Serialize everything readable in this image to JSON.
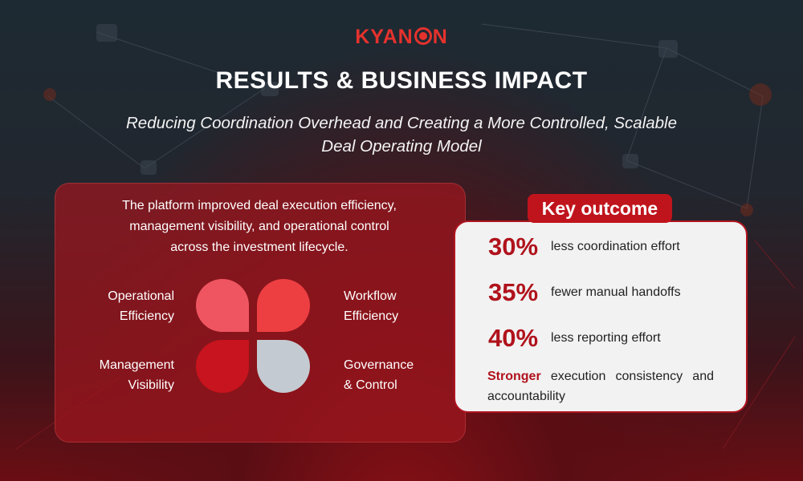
{
  "brand": {
    "logo_prefix": "KYAN",
    "logo_suffix": "N",
    "color": "#e5322d"
  },
  "header": {
    "title": "RESULTS & BUSINESS IMPACT",
    "subtitle_line1": "Reducing Coordination Overhead and Creating a More Controlled, Scalable",
    "subtitle_line2": "Deal Operating Model"
  },
  "left_panel": {
    "intro_line1": "The platform improved deal execution efficiency,",
    "intro_line2": "management visibility, and operational control",
    "intro_line3": "across the investment lifecycle.",
    "quadrants": {
      "top_left": {
        "line1": "Operational",
        "line2": "Efficiency",
        "color": "#ef5560"
      },
      "top_right": {
        "line1": "Workflow",
        "line2": "Efficiency",
        "color": "#ed3f42"
      },
      "bottom_left": {
        "line1": "Management",
        "line2": "Visibility",
        "color": "#c8141e"
      },
      "bottom_right": {
        "line1": "Governance",
        "line2": "& Control",
        "color": "#c4cad1"
      }
    }
  },
  "key_outcome": {
    "badge": "Key outcome",
    "stats": [
      {
        "value": "30%",
        "label": "less coordination effort"
      },
      {
        "value": "35%",
        "label": "fewer manual handoffs"
      },
      {
        "value": "40%",
        "label": "less reporting effort"
      }
    ],
    "final_emphasis": "Stronger",
    "final_text": "execution consistency and accountability",
    "accent_color": "#b0121c"
  }
}
